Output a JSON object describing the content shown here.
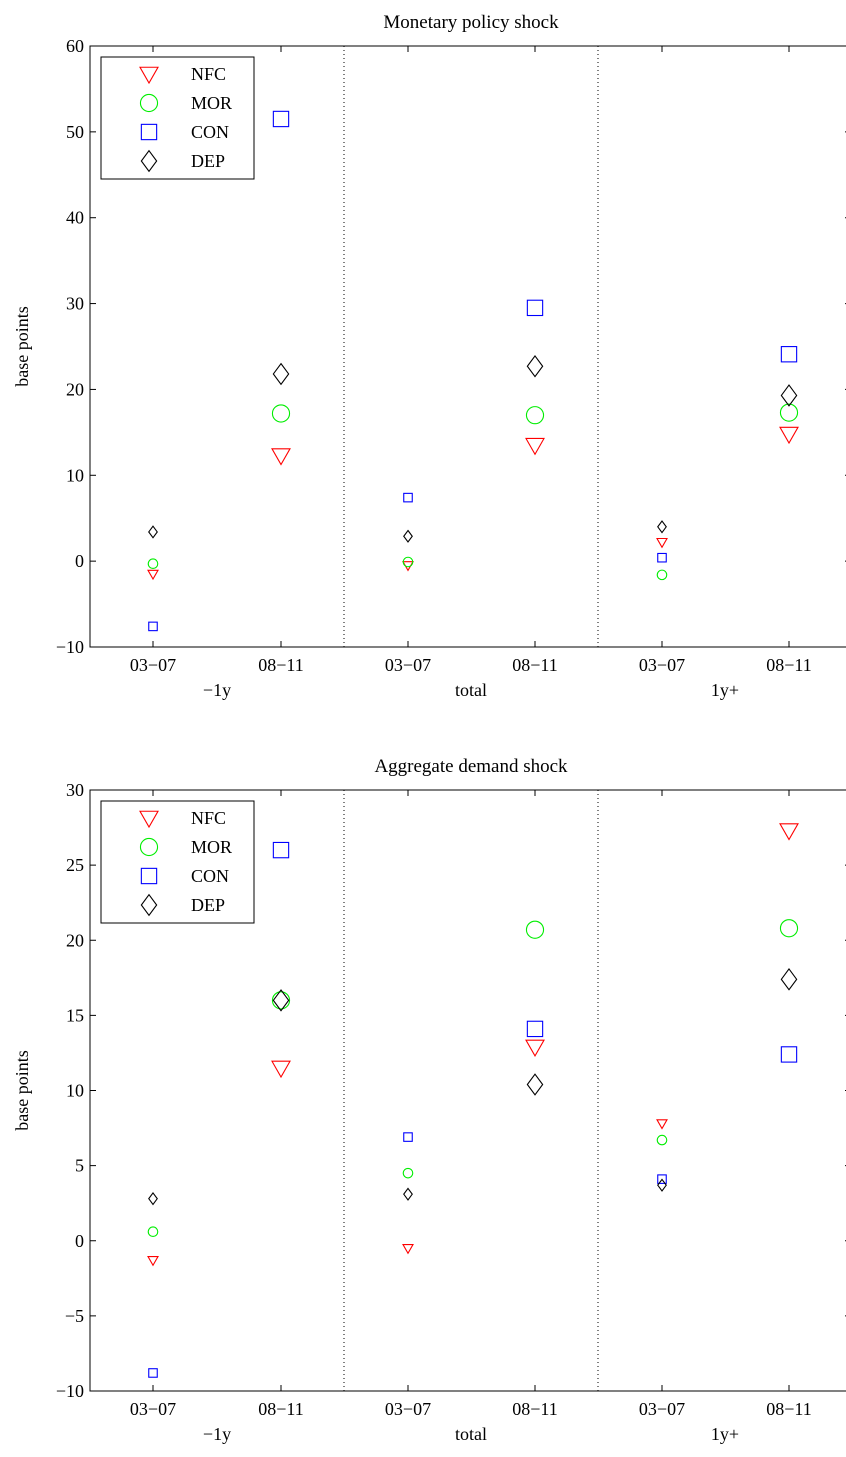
{
  "chart_data": [
    {
      "type": "scatter",
      "title": "Monetary policy shock",
      "ylabel": "base points",
      "ylim": [
        -10,
        60
      ],
      "yticks": [
        -10,
        0,
        10,
        20,
        30,
        40,
        50,
        60
      ],
      "ytick_labels": [
        "−10",
        "0",
        "10",
        "20",
        "30",
        "40",
        "50",
        "60"
      ],
      "categories": [
        "03−07",
        "08−11",
        "03−07",
        "08−11",
        "03−07",
        "08−11"
      ],
      "groups": [
        "−1y",
        "total",
        "1y+"
      ],
      "legend": {
        "position": "top-left",
        "entries": [
          "NFC",
          "MOR",
          "CON",
          "DEP"
        ]
      },
      "grid": false,
      "series": [
        {
          "name": "NFC",
          "marker": "triangle-down",
          "color": "#ff0000",
          "values": [
            -1.5,
            12.3,
            -0.5,
            13.5,
            2.2,
            14.8
          ]
        },
        {
          "name": "MOR",
          "marker": "circle",
          "color": "#00ee00",
          "values": [
            -0.3,
            17.2,
            -0.1,
            17.0,
            -1.6,
            17.3
          ]
        },
        {
          "name": "CON",
          "marker": "square",
          "color": "#0000ff",
          "values": [
            -7.6,
            51.5,
            7.4,
            29.5,
            0.4,
            24.1
          ]
        },
        {
          "name": "DEP",
          "marker": "diamond",
          "color": "#000000",
          "values": [
            3.4,
            21.8,
            2.9,
            22.7,
            4.0,
            19.3
          ]
        }
      ]
    },
    {
      "type": "scatter",
      "title": "Aggregate demand shock",
      "ylabel": "base points",
      "ylim": [
        -10,
        30
      ],
      "yticks": [
        -10,
        -5,
        0,
        5,
        10,
        15,
        20,
        25,
        30
      ],
      "ytick_labels": [
        "−10",
        "−5",
        "0",
        "5",
        "10",
        "15",
        "20",
        "25",
        "30"
      ],
      "categories": [
        "03−07",
        "08−11",
        "03−07",
        "08−11",
        "03−07",
        "08−11"
      ],
      "groups": [
        "−1y",
        "total",
        "1y+"
      ],
      "legend": {
        "position": "top-left",
        "entries": [
          "NFC",
          "MOR",
          "CON",
          "DEP"
        ]
      },
      "grid": false,
      "series": [
        {
          "name": "NFC",
          "marker": "triangle-down",
          "color": "#ff0000",
          "values": [
            -1.3,
            11.5,
            -0.5,
            12.9,
            7.8,
            27.3
          ]
        },
        {
          "name": "MOR",
          "marker": "circle",
          "color": "#00ee00",
          "values": [
            0.6,
            16.0,
            4.5,
            20.7,
            6.7,
            20.8
          ]
        },
        {
          "name": "CON",
          "marker": "square",
          "color": "#0000ff",
          "values": [
            -8.8,
            26.0,
            6.9,
            14.1,
            4.1,
            12.4
          ]
        },
        {
          "name": "DEP",
          "marker": "diamond",
          "color": "#000000",
          "values": [
            2.8,
            16.0,
            3.1,
            10.4,
            3.7,
            17.4
          ]
        }
      ]
    }
  ]
}
